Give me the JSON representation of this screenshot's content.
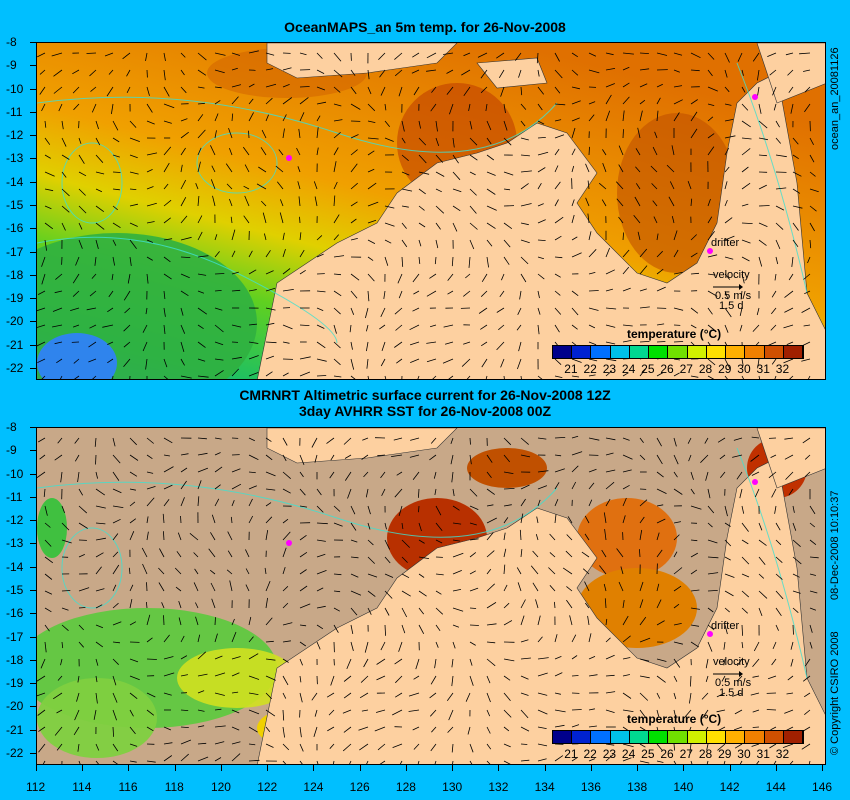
{
  "panel1": {
    "title": "OceanMAPS_an 5m temp. for 26-Nov-2008",
    "side_label": "ocean_an_20081126"
  },
  "panel2": {
    "title_line1": "CMRNRT Altimetric surface current for 26-Nov-2008 12Z",
    "title_line2": "3day AVHRR SST for 26-Nov-2008 00Z",
    "side_label": "08-Dec-2008 10:10:37",
    "copyright": "© Copyright CSIRO 2008"
  },
  "colorbar": {
    "title": "temperature (°C)",
    "ticks": [
      "21",
      "22",
      "23",
      "24",
      "25",
      "26",
      "27",
      "28",
      "29",
      "30",
      "31",
      "32"
    ],
    "colors": [
      "#00008b",
      "#0022d0",
      "#0070ff",
      "#00c0e8",
      "#00d890",
      "#00e000",
      "#70e000",
      "#d0f000",
      "#ffe000",
      "#ffb000",
      "#f08000",
      "#d05000",
      "#a02000"
    ]
  },
  "legend": {
    "drifter_label": "drifter",
    "velocity_label": "velocity",
    "speed_label": "0.5 m/s",
    "duration_label": "1.5 d"
  },
  "axes": {
    "lat_labels": [
      "-8",
      "-9",
      "-10",
      "-11",
      "-12",
      "-13",
      "-14",
      "-15",
      "-16",
      "-17",
      "-18",
      "-19",
      "-20",
      "-21",
      "-22"
    ],
    "lon_labels": [
      "112",
      "114",
      "116",
      "118",
      "120",
      "122",
      "124",
      "126",
      "128",
      "130",
      "132",
      "134",
      "136",
      "138",
      "140",
      "142",
      "144",
      "146"
    ]
  },
  "colors": {
    "background": "#00bfff",
    "land": "#fdd0a0",
    "cloud_mask": "#c8a888",
    "contour": "#40e0d0",
    "drifter": "#ff00ff"
  }
}
